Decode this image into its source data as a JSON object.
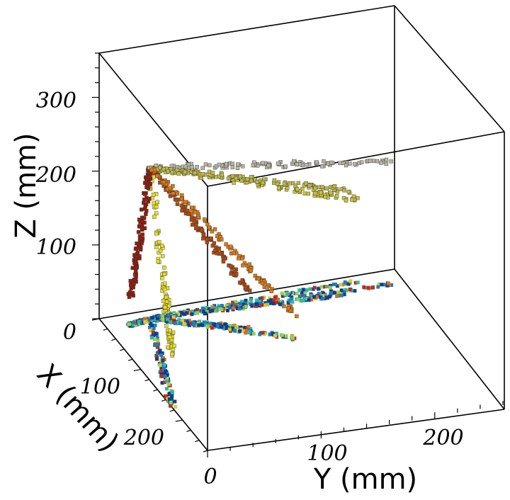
{
  "chart_data": {
    "type": "scatter3d",
    "axes": {
      "x": {
        "label": "X (mm)",
        "ticks": [
          "0",
          "100",
          "200"
        ]
      },
      "y": {
        "label": "Y (mm)",
        "ticks": [
          "0",
          "100",
          "200"
        ]
      },
      "z": {
        "label": "Z (mm)",
        "ticks": [
          "0",
          "100",
          "200",
          "300"
        ]
      }
    },
    "xlim": [
      0,
      260
    ],
    "ylim": [
      0,
      260
    ],
    "zlim": [
      0,
      360
    ],
    "vertex": {
      "x": 15,
      "y": 40,
      "z": 205
    },
    "tracks": [
      {
        "end": {
          "x": 175,
          "y": 0,
          "z": 70
        },
        "color": "#e3dc2a"
      },
      {
        "end": {
          "x": 20,
          "y": 20,
          "z": 35
        },
        "color": "#8e1f0e"
      },
      {
        "end": {
          "x": 60,
          "y": 110,
          "z": 50
        },
        "color": "#ad4a12"
      },
      {
        "end": {
          "x": 10,
          "y": 225,
          "z": 110
        },
        "color": "#c8c23e"
      },
      {
        "end": {
          "x": 25,
          "y": 250,
          "z": 165
        },
        "color": "#b7b4a4"
      },
      {
        "end": {
          "x": 30,
          "y": 210,
          "z": 140
        },
        "color": "#bdb84a"
      },
      {
        "end": {
          "x": 90,
          "y": 140,
          "z": 30
        },
        "color": "#d97a16"
      }
    ],
    "projection_palette": [
      "#133d8c",
      "#1f7fb8",
      "#2fb8a8",
      "#9ad04a",
      "#e8c82a",
      "#e06a18",
      "#c42b1a"
    ]
  }
}
